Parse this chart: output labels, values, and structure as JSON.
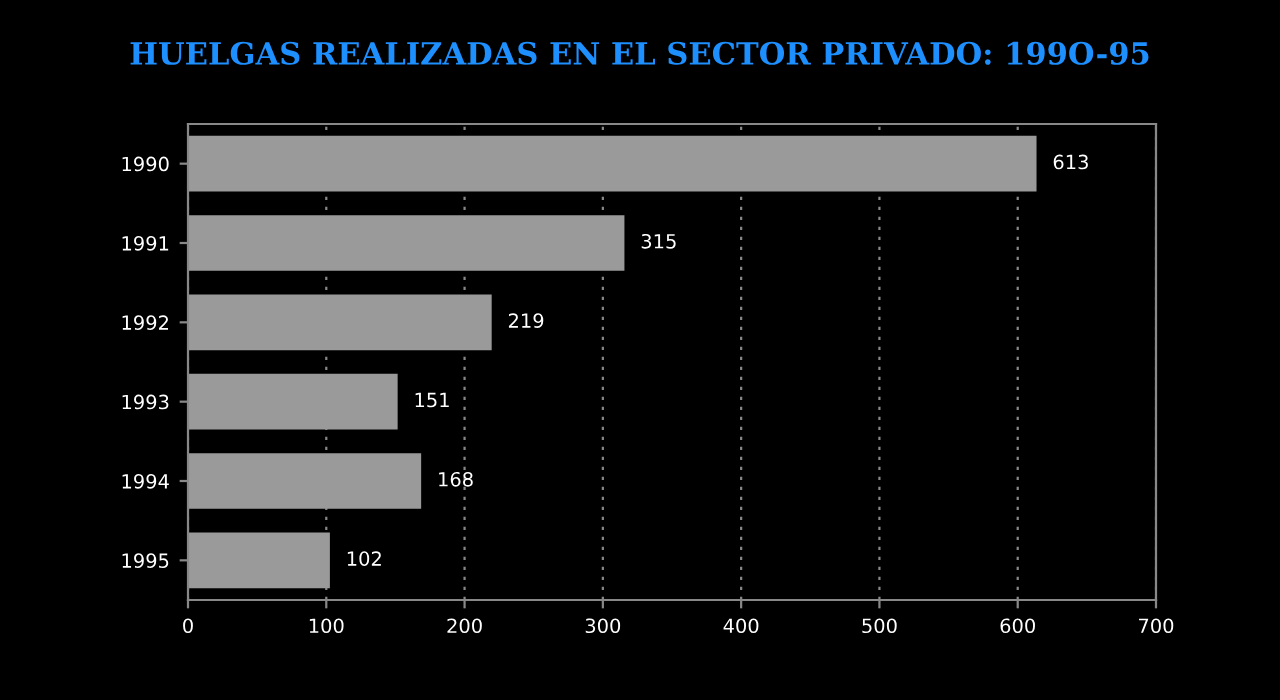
{
  "chart_data": {
    "type": "bar",
    "orientation": "horizontal",
    "title": "HUELGAS REALIZADAS EN EL SECTOR PRIVADO: 199O-95",
    "categories": [
      "1990",
      "1991",
      "1992",
      "1993",
      "1994",
      "1995"
    ],
    "values": [
      613,
      315,
      219,
      151,
      168,
      102
    ],
    "color": "#9a9a9a",
    "data_labels": true,
    "xlim": [
      0,
      700
    ],
    "xticks": [
      0,
      100,
      200,
      300,
      400,
      500,
      600,
      700
    ],
    "grid": "x"
  }
}
